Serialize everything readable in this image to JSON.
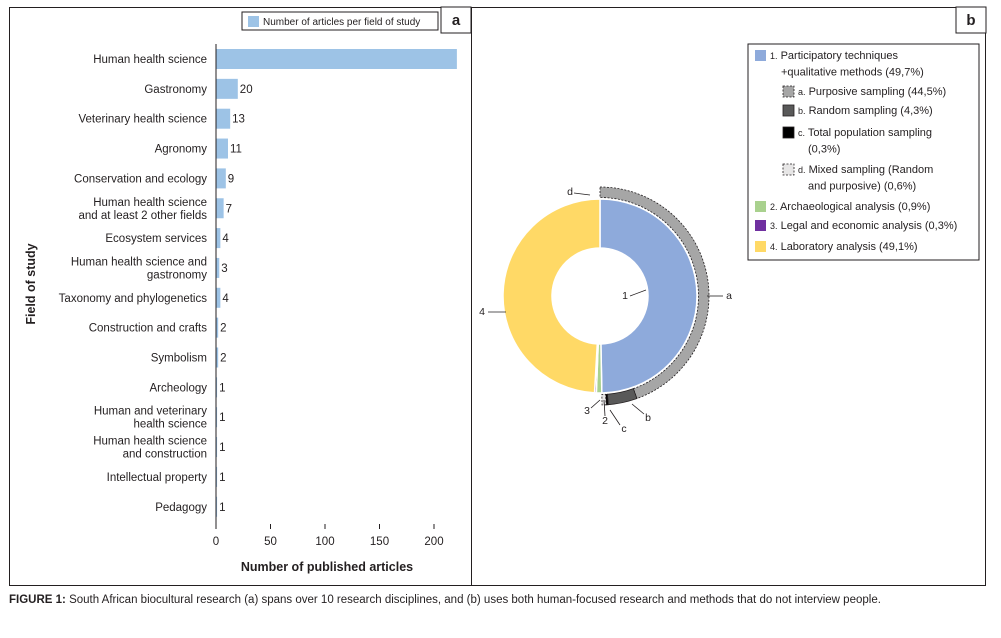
{
  "chart_data": [
    {
      "panel": "a",
      "type": "bar",
      "orientation": "horizontal",
      "legend_label": "Number of articles per field of study",
      "legend_position": "top-right",
      "xlabel": "Number of published articles",
      "ylabel": "Field of study",
      "xlim": [
        0,
        220
      ],
      "xticks": [
        0,
        50,
        100,
        150,
        200
      ],
      "bar_color": "#9dc3e6",
      "categories": [
        [
          "Human health science"
        ],
        [
          "Gastronomy"
        ],
        [
          "Veterinary health science"
        ],
        [
          "Agronomy"
        ],
        [
          "Conservation and ecology"
        ],
        [
          "Human health science",
          "and at least 2 other fields"
        ],
        [
          "Ecosystem services"
        ],
        [
          "Human health science and",
          "gastronomy"
        ],
        [
          "Taxonomy and phylogenetics"
        ],
        [
          "Construction and crafts"
        ],
        [
          "Symbolism"
        ],
        [
          "Archeology"
        ],
        [
          "Human and veterinary",
          "health science"
        ],
        [
          "Human health science",
          "and construction"
        ],
        [
          "Intellectual property"
        ],
        [
          "Pedagogy"
        ]
      ],
      "values": [
        221,
        20,
        13,
        11,
        9,
        7,
        4,
        3,
        4,
        2,
        2,
        1,
        1,
        1,
        1,
        1
      ],
      "value_labels": [
        "",
        "20",
        "13",
        "11",
        "9",
        "7",
        "4",
        "3",
        "4",
        "2",
        "2",
        "1",
        "1",
        "1",
        "1",
        "1"
      ]
    },
    {
      "panel": "b",
      "type": "pie",
      "variant": "nested-donut",
      "inner_ring": [
        {
          "label": "1",
          "name": "1. Participatory techniques +qualitative methods (49,7%)",
          "value": 49.7,
          "color": "#8eaadb"
        },
        {
          "label": "2",
          "name": "2. Archaeological analysis (0,9%)",
          "value": 0.9,
          "color": "#a9d18e"
        },
        {
          "label": "3",
          "name": "3. Legal and economic analysis (0,3%)",
          "value": 0.3,
          "color": "#7030a0"
        },
        {
          "label": "4",
          "name": "4. Laboratory analysis (49,1%)",
          "value": 49.1,
          "color": "#ffd966"
        }
      ],
      "outer_ring": [
        {
          "label": "a",
          "name": "a. Purposive sampling (44,5%)",
          "value": 44.5,
          "color": "#a6a6a6"
        },
        {
          "label": "b",
          "name": "b. Random sampling (4,3%)",
          "value": 4.3,
          "color": "#595959"
        },
        {
          "label": "c",
          "name": "c. Total population sampling (0,3%)",
          "value": 0.3,
          "color": "#000000"
        },
        {
          "label": "d",
          "name": "d. Mixed sampling (Random and purposive) (0,6%)",
          "value": 0.6,
          "color": "#e7e6e6"
        }
      ],
      "legend_position": "top-right"
    }
  ],
  "legend_b": [
    {
      "swatch": "#8eaadb",
      "lines": [
        [
          "1.",
          " Participatory techniques"
        ],
        [
          "",
          "+qualitative methods (49,7%)"
        ]
      ]
    },
    {
      "swatch": "#a6a6a6",
      "sub": true,
      "lines": [
        [
          "a.",
          " Purposive sampling (44,5%)"
        ]
      ]
    },
    {
      "swatch": "#595959",
      "sub": true,
      "lines": [
        [
          "b.",
          " Random sampling (4,3%)"
        ]
      ]
    },
    {
      "swatch": "#000000",
      "sub": true,
      "lines": [
        [
          "c.",
          " Total population sampling"
        ],
        [
          "",
          "(0,3%)"
        ]
      ]
    },
    {
      "swatch": "#e7e6e6",
      "sub": true,
      "lines": [
        [
          "d.",
          " Mixed sampling (Random"
        ],
        [
          "",
          "and purposive) (0,6%)"
        ]
      ]
    },
    {
      "swatch": "#a9d18e",
      "lines": [
        [
          "2.",
          " Archaeological analysis (0,9%)"
        ]
      ]
    },
    {
      "swatch": "#7030a0",
      "lines": [
        [
          "3.",
          " Legal and economic analysis (0,3%)"
        ]
      ]
    },
    {
      "swatch": "#ffd966",
      "lines": [
        [
          "4.",
          " Laboratory analysis (49,1%)"
        ]
      ]
    }
  ],
  "panel_labels": {
    "a": "a",
    "b": "b"
  },
  "caption": {
    "label": "FIGURE 1:",
    "text": " South African biocultural research (a) spans over 10 research disciplines, and (b) uses both human-focused research and methods that do not interview people."
  }
}
